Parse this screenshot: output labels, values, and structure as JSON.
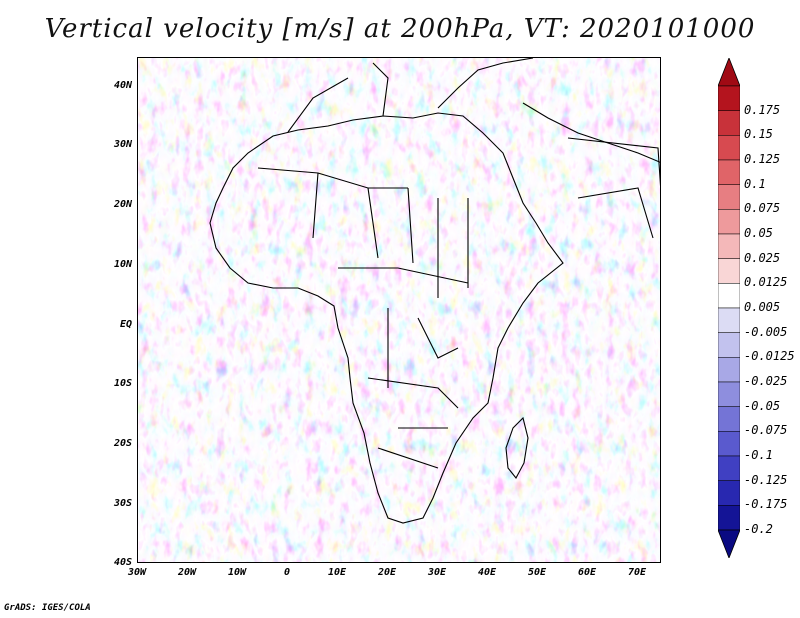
{
  "title": "Vertical velocity [m/s] at 200hPa, VT: 2020101000",
  "footer": "GrADS: IGES/COLA",
  "map": {
    "lat_labels": [
      "40N",
      "30N",
      "20N",
      "10N",
      "EQ",
      "10S",
      "20S",
      "30S",
      "40S"
    ],
    "lon_labels": [
      "30W",
      "20W",
      "10W",
      "0",
      "10E",
      "20E",
      "30E",
      "40E",
      "50E",
      "60E",
      "70E"
    ],
    "lat_range_deg": [
      -40,
      45
    ],
    "lon_range_deg": [
      -30,
      75
    ],
    "field": "vertical velocity",
    "level": "200hPa",
    "valid_time": "2020101000"
  },
  "colorbar": {
    "labels": [
      "0.175",
      "0.15",
      "0.125",
      "0.1",
      "0.075",
      "0.05",
      "0.025",
      "0.0125",
      "0.005",
      "-0.005",
      "-0.0125",
      "-0.025",
      "-0.05",
      "-0.075",
      "-0.1",
      "-0.125",
      "-0.175",
      "-0.2"
    ],
    "colors": [
      "#b4141e",
      "#c8323a",
      "#d74a50",
      "#e06468",
      "#e77e82",
      "#ee9a9c",
      "#f4b8b9",
      "#f9d6d6",
      "#ffffff",
      "#dcdcf4",
      "#c2c2ee",
      "#a8a8e6",
      "#8e8ede",
      "#7474d6",
      "#5a5ace",
      "#4040c2",
      "#2828b0",
      "#141496"
    ],
    "top_arrow_color": "#a00a14",
    "bottom_arrow_color": "#0a0a82"
  }
}
